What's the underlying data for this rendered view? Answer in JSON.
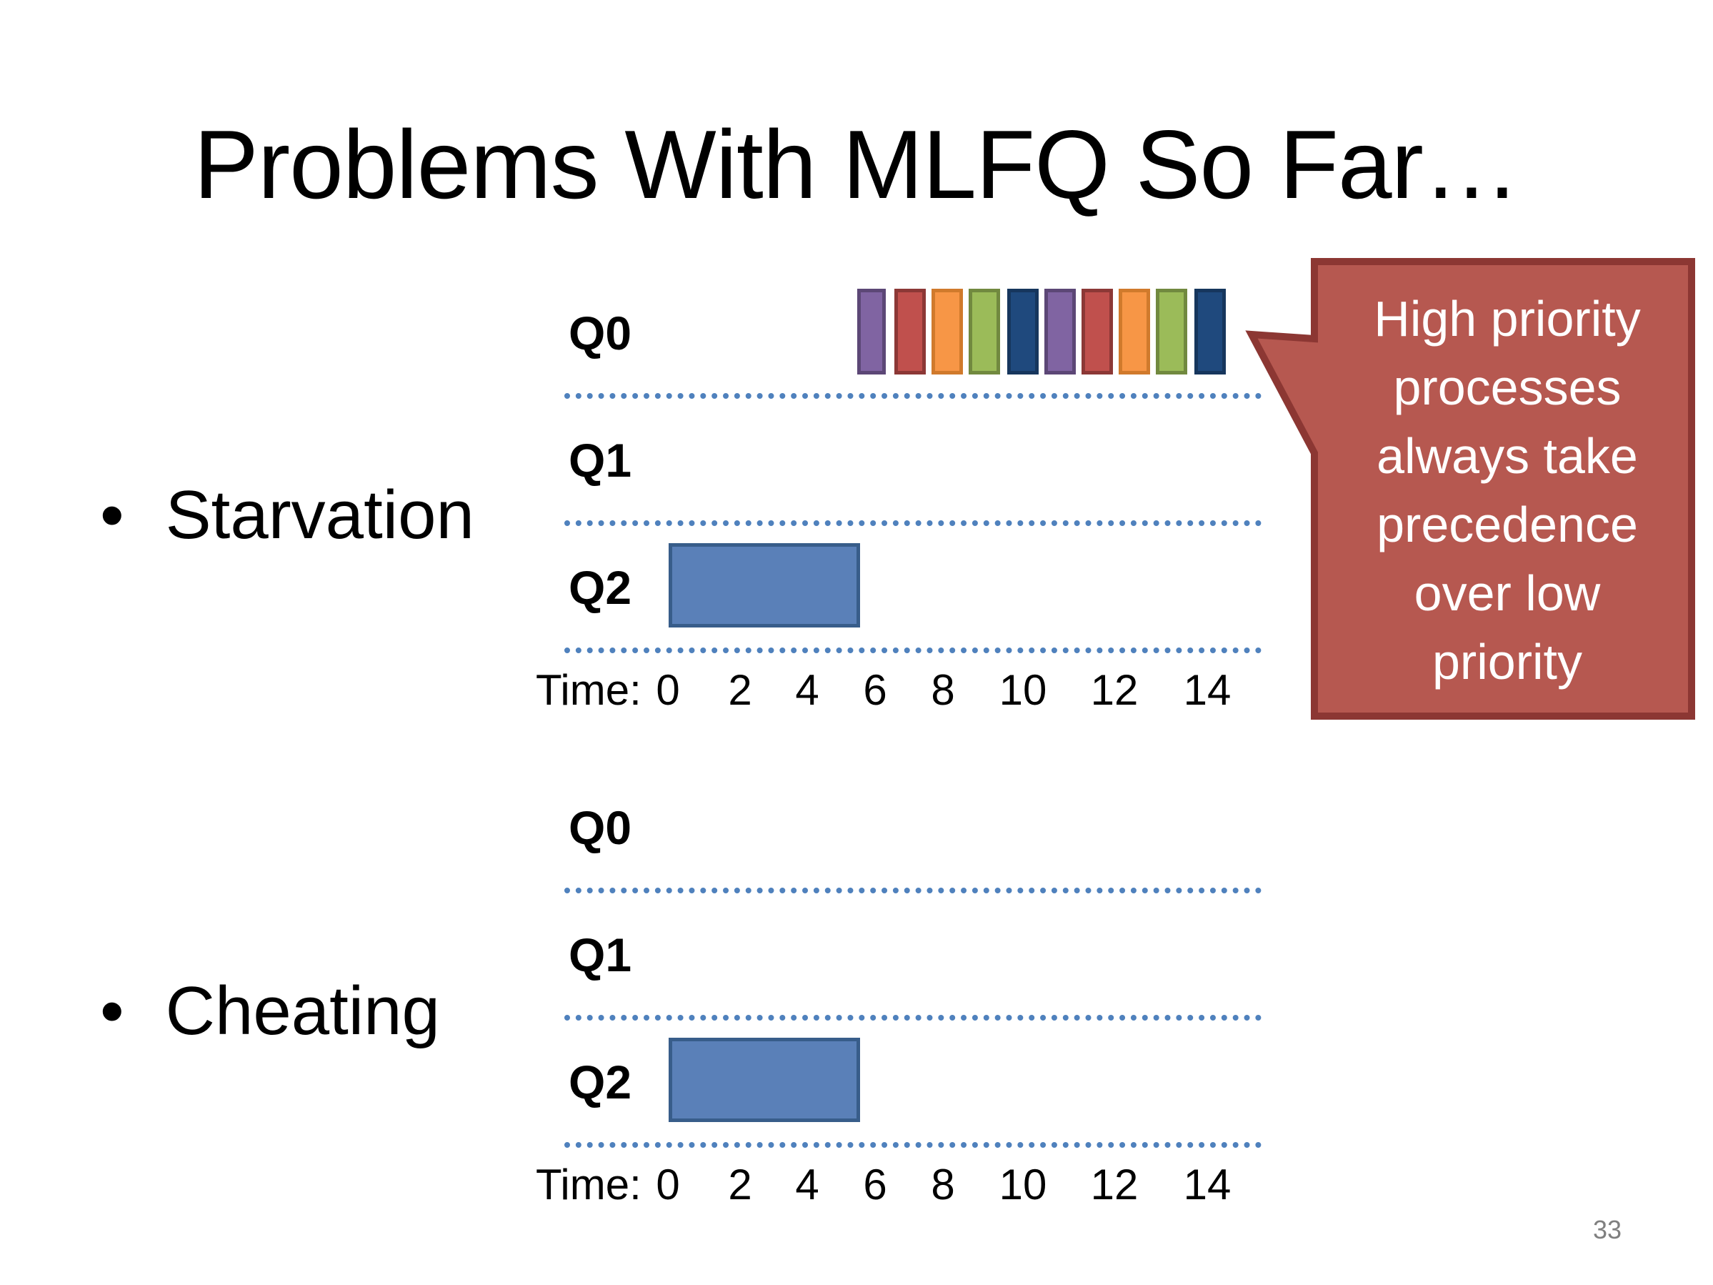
{
  "title": "Problems With MLFQ So Far…",
  "bullets": [
    {
      "label": "Starvation"
    },
    {
      "label": "Cheating"
    }
  ],
  "bullet_glyph": "•",
  "queues": [
    "Q0",
    "Q1",
    "Q2"
  ],
  "time_axis": {
    "label": "Time:",
    "ticks": [
      "0",
      "2",
      "4",
      "6",
      "8",
      "10",
      "12",
      "14"
    ]
  },
  "callout": {
    "text": "High priority\nprocesses\nalways take\nprecedence\nover low\npriority",
    "fill": "#b65850",
    "stroke": "#8c3733"
  },
  "q0_slices": [
    {
      "color": "#8064a2",
      "border": "#5c4776"
    },
    {
      "color": "#c0504d",
      "border": "#8c3836"
    },
    {
      "color": "#f79646",
      "border": "#d07a2c"
    },
    {
      "color": "#9bbb59",
      "border": "#71893f"
    },
    {
      "color": "#1f497d",
      "border": "#16365d"
    },
    {
      "color": "#8064a2",
      "border": "#5c4776"
    },
    {
      "color": "#c0504d",
      "border": "#8c3836"
    },
    {
      "color": "#f79646",
      "border": "#d07a2c"
    },
    {
      "color": "#9bbb59",
      "border": "#71893f"
    },
    {
      "color": "#1f497d",
      "border": "#16365d"
    }
  ],
  "long_job": {
    "color": "#5a80b8",
    "border": "#385d8a"
  },
  "page_number": "33"
}
